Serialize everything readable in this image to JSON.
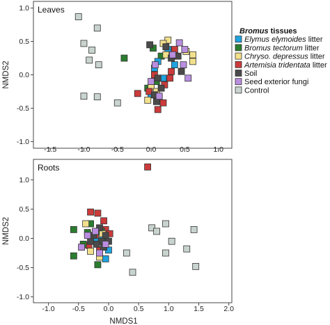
{
  "legend": {
    "title_bold": "Bromus",
    "title_rest": " tissues",
    "entries": [
      {
        "italic": "Elymus elymoides",
        "rest": " litter",
        "color": "#1fa3e0"
      },
      {
        "italic": "Bromus tectorum",
        "rest": " litter",
        "color": "#2a7d2e"
      },
      {
        "italic": "Chryso. depressus",
        "rest": " litter",
        "color": "#f2e08c"
      },
      {
        "italic": "Artemisia tridentata",
        "rest": " litter",
        "color": "#cc3b3b"
      },
      {
        "italic": "",
        "rest": "Soil",
        "color": "#4a4a4a"
      },
      {
        "italic": "",
        "rest": "Seed exterior fungi",
        "color": "#b98ee0"
      },
      {
        "italic": "",
        "rest": "Control",
        "color": "#c9d4cf"
      }
    ]
  },
  "chart_data": [
    {
      "type": "scatter",
      "panel_label": "Leaves",
      "xlabel": "",
      "ylabel": "NMDS2",
      "xlim": [
        -1.75,
        1.2
      ],
      "ylim": [
        -1.1,
        1.1
      ],
      "xticks": [
        "-1.5",
        "-1.0",
        "-0.5",
        "0.0",
        "0.5",
        "1.0"
      ],
      "xtick_values": [
        -1.5,
        -1.0,
        -0.5,
        0.0,
        0.5,
        1.0
      ],
      "yticks": [
        "1.0",
        "0.5",
        "0.0",
        "-0.5",
        "-1.0"
      ],
      "ytick_values": [
        1.0,
        0.5,
        0.0,
        -0.5,
        -1.0
      ],
      "series": [
        {
          "name": "Control",
          "color": "#c9d4cf",
          "points": [
            [
              -1.08,
              0.87
            ],
            [
              -0.8,
              0.7
            ],
            [
              -1.0,
              0.47
            ],
            [
              -0.88,
              0.37
            ],
            [
              -0.92,
              0.22
            ],
            [
              -0.78,
              0.15
            ],
            [
              -1.0,
              -0.32
            ],
            [
              -0.8,
              -0.33
            ],
            [
              -0.5,
              -0.42
            ]
          ]
        },
        {
          "name": "Bromus tectorum litter",
          "color": "#2a7d2e",
          "points": [
            [
              -0.4,
              0.25
            ],
            [
              0.03,
              0.4
            ],
            [
              0.15,
              0.28
            ],
            [
              0.08,
              -0.1
            ],
            [
              -0.05,
              -0.2
            ],
            [
              0.12,
              -0.35
            ]
          ]
        },
        {
          "name": "Elymus elymoides litter",
          "color": "#1fa3e0",
          "points": [
            [
              0.25,
              0.38
            ],
            [
              0.05,
              0.1
            ],
            [
              0.18,
              -0.05
            ],
            [
              0.0,
              -0.3
            ],
            [
              0.35,
              0.15
            ],
            [
              0.1,
              0.2
            ]
          ]
        },
        {
          "name": "Chryso. depressus litter",
          "color": "#f2e08c",
          "points": [
            [
              0.25,
              0.52
            ],
            [
              0.18,
              0.47
            ],
            [
              0.52,
              0.35
            ],
            [
              0.62,
              0.3
            ],
            [
              0.62,
              0.2
            ],
            [
              0.0,
              -0.18
            ],
            [
              0.08,
              -0.25
            ],
            [
              -0.05,
              -0.38
            ],
            [
              0.22,
              0.3
            ]
          ]
        },
        {
          "name": "Artemisia tridentata litter",
          "color": "#cc3b3b",
          "points": [
            [
              0.05,
              0.0
            ],
            [
              -0.03,
              -0.25
            ],
            [
              0.18,
              -0.42
            ],
            [
              0.1,
              -0.52
            ],
            [
              0.28,
              -0.05
            ],
            [
              0.35,
              0.38
            ],
            [
              -0.2,
              -0.28
            ],
            [
              0.2,
              -0.15
            ],
            [
              0.3,
              0.05
            ]
          ]
        },
        {
          "name": "Soil",
          "color": "#4a4a4a",
          "points": [
            [
              -0.02,
              0.45
            ],
            [
              0.22,
              0.42
            ],
            [
              0.4,
              0.28
            ],
            [
              0.45,
              0.05
            ],
            [
              0.1,
              -0.05
            ],
            [
              0.15,
              -0.2
            ],
            [
              0.05,
              -0.3
            ],
            [
              0.3,
              0.25
            ],
            [
              0.08,
              -0.4
            ]
          ]
        },
        {
          "name": "Seed exterior fungi",
          "color": "#b98ee0",
          "points": [
            [
              0.42,
              0.48
            ],
            [
              0.5,
              0.38
            ],
            [
              0.48,
              0.15
            ],
            [
              0.55,
              -0.05
            ],
            [
              0.0,
              -0.1
            ],
            [
              0.12,
              -0.32
            ],
            [
              0.32,
              0.3
            ],
            [
              0.06,
              0.15
            ]
          ]
        }
      ]
    },
    {
      "type": "scatter",
      "panel_label": "Roots",
      "xlabel": "NMDS1",
      "ylabel": "NMDS2",
      "xlim": [
        -1.25,
        2.05
      ],
      "ylim": [
        -1.1,
        1.35
      ],
      "xticks": [
        "-1.0",
        "-0.5",
        "0.0",
        "0.5",
        "1.0",
        "1.5",
        "2.0"
      ],
      "xtick_values": [
        -1.0,
        -0.5,
        0.0,
        0.5,
        1.0,
        1.5,
        2.0
      ],
      "yticks": [
        "1.0",
        "0.5",
        "0.0",
        "-0.5",
        "-1.0"
      ],
      "ytick_values": [
        1.0,
        0.5,
        0.0,
        -0.5,
        -1.0
      ],
      "series": [
        {
          "name": "Artemisia tridentata litter",
          "color": "#cc3b3b",
          "points": [
            [
              0.65,
              1.22
            ],
            [
              -0.3,
              0.45
            ],
            [
              -0.18,
              0.43
            ],
            [
              -0.05,
              0.15
            ],
            [
              -0.22,
              0.02
            ],
            [
              -0.15,
              -0.2
            ],
            [
              0.02,
              0.08
            ],
            [
              -0.33,
              -0.12
            ],
            [
              -0.08,
              0.3
            ]
          ]
        },
        {
          "name": "Bromus tectorum litter",
          "color": "#2a7d2e",
          "points": [
            [
              -0.58,
              0.15
            ],
            [
              -0.58,
              -0.3
            ],
            [
              -0.18,
              -0.45
            ],
            [
              -0.3,
              0.25
            ],
            [
              -0.35,
              0.1
            ],
            [
              -0.12,
              0.12
            ],
            [
              -0.05,
              0.0
            ],
            [
              -0.2,
              0.12
            ],
            [
              -0.42,
              -0.1
            ]
          ]
        },
        {
          "name": "Elymus elymoides litter",
          "color": "#1fa3e0",
          "points": [
            [
              -0.05,
              -0.35
            ],
            [
              -0.22,
              -0.05
            ],
            [
              -0.1,
              0.05
            ],
            [
              0.0,
              -0.2
            ]
          ]
        },
        {
          "name": "Chryso. depressus litter",
          "color": "#f2e08c",
          "points": [
            [
              -0.38,
              0.25
            ],
            [
              -0.1,
              0.08
            ],
            [
              -0.3,
              -0.22
            ],
            [
              -0.15,
              -0.32
            ]
          ]
        },
        {
          "name": "Soil",
          "color": "#4a4a4a",
          "points": [
            [
              -0.05,
              0.05
            ],
            [
              -0.12,
              -0.05
            ],
            [
              -0.2,
              -0.1
            ],
            [
              -0.08,
              -0.15
            ],
            [
              -0.25,
              0.05
            ],
            [
              -0.15,
              0.18
            ],
            [
              0.0,
              -0.05
            ],
            [
              -0.3,
              -0.05
            ]
          ]
        },
        {
          "name": "Seed exterior fungi",
          "color": "#b98ee0",
          "points": [
            [
              -0.45,
              -0.15
            ],
            [
              -0.15,
              -0.25
            ],
            [
              -0.35,
              0.05
            ],
            [
              -0.22,
              0.12
            ],
            [
              -0.05,
              -0.1
            ]
          ]
        },
        {
          "name": "Control",
          "color": "#c9d4cf",
          "points": [
            [
              0.95,
              0.25
            ],
            [
              0.72,
              0.18
            ],
            [
              0.8,
              0.12
            ],
            [
              1.42,
              0.15
            ],
            [
              1.05,
              -0.05
            ],
            [
              0.3,
              -0.25
            ],
            [
              0.95,
              -0.25
            ],
            [
              1.3,
              -0.18
            ],
            [
              1.45,
              -0.48
            ],
            [
              0.4,
              -0.58
            ]
          ]
        }
      ]
    }
  ]
}
